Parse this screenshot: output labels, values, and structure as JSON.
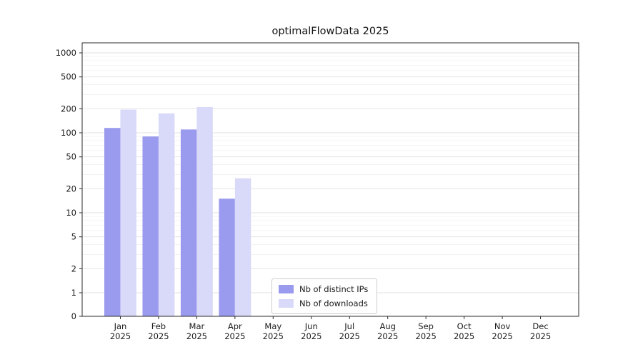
{
  "chart_data": {
    "type": "bar",
    "title": "optimalFlowData 2025",
    "year_label": "2025",
    "categories": [
      "Jan",
      "Feb",
      "Mar",
      "Apr",
      "May",
      "Jun",
      "Jul",
      "Aug",
      "Sep",
      "Oct",
      "Nov",
      "Dec"
    ],
    "series": [
      {
        "name": "Nb of distinct IPs",
        "color": "#9a9aee",
        "values": [
          115,
          90,
          110,
          15,
          0,
          0,
          0,
          0,
          0,
          0,
          0,
          0
        ]
      },
      {
        "name": "Nb of downloads",
        "color": "#d9d9f9",
        "values": [
          195,
          175,
          210,
          27,
          0,
          0,
          0,
          0,
          0,
          0,
          0,
          0
        ]
      }
    ],
    "yticks": [
      0,
      1,
      2,
      5,
      10,
      20,
      50,
      100,
      200,
      500,
      1000
    ],
    "yscale": "symlog",
    "ylim": [
      0,
      1300
    ],
    "grid": true,
    "legend_position": "lower center"
  }
}
